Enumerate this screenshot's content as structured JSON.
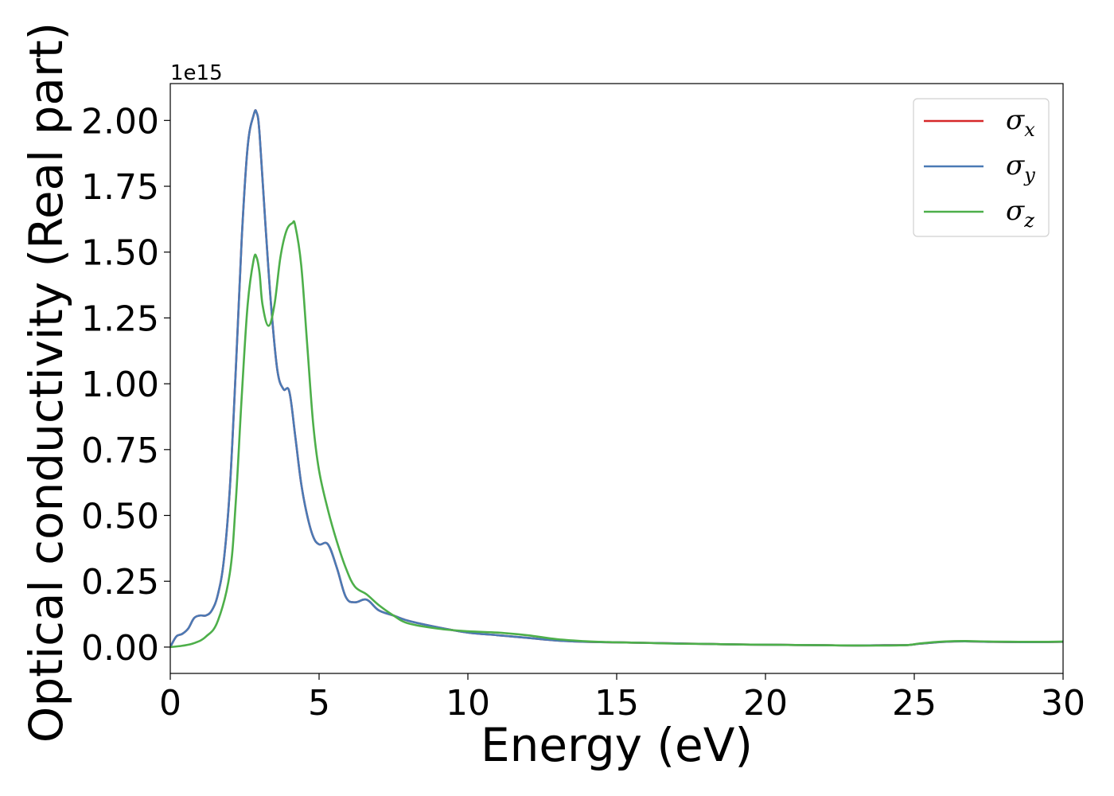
{
  "chart_data": {
    "type": "line",
    "title": "",
    "xlabel": "Energy (eV)",
    "ylabel": "Optical conductivity (Real part)",
    "y_offset_text": "1e15",
    "xlim": [
      0,
      30
    ],
    "ylim": [
      -0.1,
      2.14
    ],
    "x_ticks": [
      0,
      5,
      10,
      15,
      20,
      25,
      30
    ],
    "x_tick_labels": [
      "0",
      "5",
      "10",
      "15",
      "20",
      "25",
      "30"
    ],
    "y_ticks": [
      0.0,
      0.25,
      0.5,
      0.75,
      1.0,
      1.25,
      1.5,
      1.75,
      2.0
    ],
    "y_tick_labels": [
      "0.00",
      "0.25",
      "0.50",
      "0.75",
      "1.00",
      "1.25",
      "1.50",
      "1.75",
      "2.00"
    ],
    "grid": false,
    "legend_position": "top-right",
    "series": [
      {
        "name": "σx",
        "legend_symbol": "σ",
        "legend_sub": "x",
        "color": "#d62728",
        "x": [
          0,
          0.2,
          0.4,
          0.6,
          0.8,
          1.0,
          1.2,
          1.4,
          1.6,
          1.8,
          2.0,
          2.2,
          2.4,
          2.6,
          2.8,
          2.9,
          3.0,
          3.2,
          3.4,
          3.6,
          3.8,
          4.0,
          4.2,
          4.4,
          4.6,
          4.8,
          5.0,
          5.3,
          5.6,
          5.9,
          6.2,
          6.6,
          7.0,
          7.5,
          8.0,
          9.0,
          10.0,
          11.0,
          12.0,
          13.0,
          14.0,
          15.0,
          16.0,
          17.0,
          18.0,
          19.0,
          20.0,
          21.0,
          22.0,
          23.0,
          24.0,
          24.8,
          25.2,
          26.0,
          26.7,
          27.5,
          28.5,
          29.5,
          30.0
        ],
        "y": [
          0.0,
          0.04,
          0.05,
          0.07,
          0.11,
          0.12,
          0.12,
          0.14,
          0.2,
          0.33,
          0.6,
          1.05,
          1.55,
          1.9,
          2.02,
          2.03,
          1.95,
          1.6,
          1.28,
          1.05,
          0.98,
          0.97,
          0.8,
          0.62,
          0.5,
          0.42,
          0.39,
          0.39,
          0.3,
          0.19,
          0.17,
          0.18,
          0.14,
          0.12,
          0.1,
          0.075,
          0.055,
          0.045,
          0.035,
          0.025,
          0.02,
          0.018,
          0.016,
          0.014,
          0.012,
          0.01,
          0.009,
          0.008,
          0.007,
          0.006,
          0.007,
          0.008,
          0.013,
          0.02,
          0.022,
          0.02,
          0.019,
          0.019,
          0.02
        ]
      },
      {
        "name": "σy",
        "legend_symbol": "σ",
        "legend_sub": "y",
        "color": "#4a7ab5",
        "x": [
          0,
          0.2,
          0.4,
          0.6,
          0.8,
          1.0,
          1.2,
          1.4,
          1.6,
          1.8,
          2.0,
          2.2,
          2.4,
          2.6,
          2.8,
          2.9,
          3.0,
          3.2,
          3.4,
          3.6,
          3.8,
          4.0,
          4.2,
          4.4,
          4.6,
          4.8,
          5.0,
          5.3,
          5.6,
          5.9,
          6.2,
          6.6,
          7.0,
          7.5,
          8.0,
          9.0,
          10.0,
          11.0,
          12.0,
          13.0,
          14.0,
          15.0,
          16.0,
          17.0,
          18.0,
          19.0,
          20.0,
          21.0,
          22.0,
          23.0,
          24.0,
          24.8,
          25.2,
          26.0,
          26.7,
          27.5,
          28.5,
          29.5,
          30.0
        ],
        "y": [
          0.0,
          0.04,
          0.05,
          0.07,
          0.11,
          0.12,
          0.12,
          0.14,
          0.2,
          0.33,
          0.6,
          1.05,
          1.55,
          1.9,
          2.02,
          2.03,
          1.95,
          1.6,
          1.28,
          1.05,
          0.98,
          0.97,
          0.8,
          0.62,
          0.5,
          0.42,
          0.39,
          0.39,
          0.3,
          0.19,
          0.17,
          0.18,
          0.14,
          0.12,
          0.1,
          0.075,
          0.055,
          0.045,
          0.035,
          0.025,
          0.02,
          0.018,
          0.016,
          0.014,
          0.012,
          0.01,
          0.009,
          0.008,
          0.007,
          0.006,
          0.007,
          0.008,
          0.013,
          0.02,
          0.022,
          0.02,
          0.019,
          0.019,
          0.02
        ]
      },
      {
        "name": "σz",
        "legend_symbol": "σ",
        "legend_sub": "z",
        "color": "#4daf4a",
        "x": [
          0,
          0.4,
          0.8,
          1.2,
          1.6,
          2.0,
          2.2,
          2.4,
          2.6,
          2.8,
          2.9,
          3.0,
          3.1,
          3.3,
          3.5,
          3.7,
          3.9,
          4.1,
          4.2,
          4.4,
          4.6,
          4.8,
          5.0,
          5.3,
          5.6,
          5.9,
          6.2,
          6.6,
          7.0,
          7.5,
          8.0,
          9.0,
          10.0,
          11.0,
          12.0,
          13.0,
          14.0,
          15.0,
          16.0,
          17.0,
          18.0,
          19.0,
          20.0,
          21.0,
          22.0,
          23.0,
          24.0,
          24.8,
          25.2,
          26.0,
          26.7,
          27.5,
          28.5,
          29.5,
          30.0
        ],
        "y": [
          0.0,
          0.005,
          0.015,
          0.04,
          0.1,
          0.28,
          0.55,
          0.95,
          1.3,
          1.47,
          1.48,
          1.42,
          1.3,
          1.22,
          1.3,
          1.48,
          1.58,
          1.61,
          1.6,
          1.45,
          1.15,
          0.85,
          0.67,
          0.52,
          0.4,
          0.3,
          0.23,
          0.2,
          0.16,
          0.12,
          0.09,
          0.07,
          0.06,
          0.055,
          0.045,
          0.03,
          0.022,
          0.018,
          0.016,
          0.013,
          0.012,
          0.01,
          0.009,
          0.008,
          0.007,
          0.006,
          0.006,
          0.008,
          0.014,
          0.021,
          0.023,
          0.021,
          0.02,
          0.02,
          0.021
        ]
      }
    ]
  }
}
